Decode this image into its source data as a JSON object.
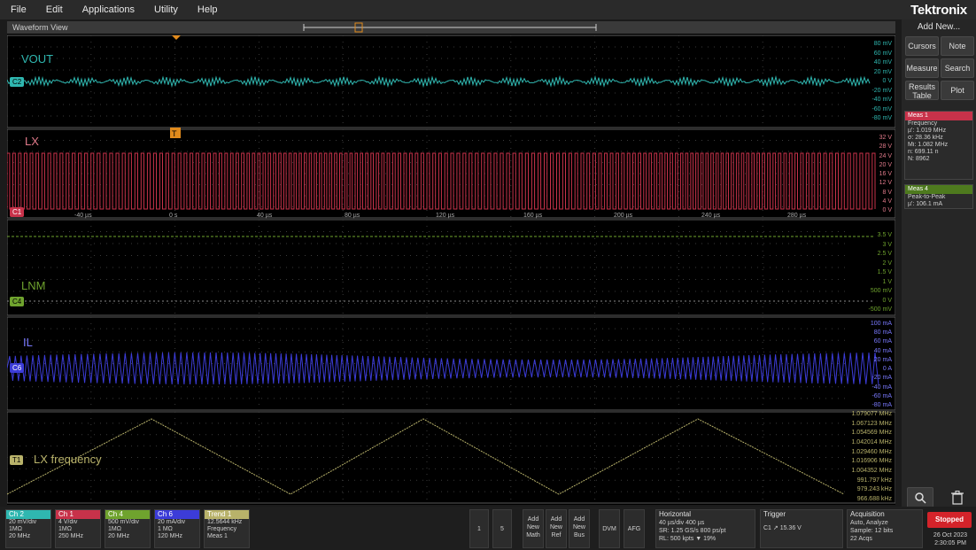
{
  "menu": [
    "File",
    "Edit",
    "Applications",
    "Utility",
    "Help"
  ],
  "brand": "Tektronix",
  "waveform_view_title": "Waveform View",
  "channels": {
    "vout": {
      "label": "VOUT",
      "badge": "C2",
      "color": "#2fb7b0",
      "scale": [
        "80 mV",
        "60 mV",
        "40 mV",
        "20 mV",
        "0 V",
        "-20 mV",
        "-40 mV",
        "-60 mV",
        "-80 mV"
      ]
    },
    "lx": {
      "label": "LX",
      "badge": "C1",
      "color": "#c8324a",
      "scale": [
        "32 V",
        "28 V",
        "24 V",
        "20 V",
        "16 V",
        "12 V",
        "8 V",
        "4 V",
        "0 V"
      ]
    },
    "lnm": {
      "label": "LNM",
      "badge": "C4",
      "color": "#6fa32e",
      "scale": [
        "3.5 V",
        "3 V",
        "2.5 V",
        "2 V",
        "1.5 V",
        "1 V",
        "500 mV",
        "0 V",
        "-500 mV"
      ]
    },
    "il": {
      "label": "IL",
      "badge": "C6",
      "color": "#3c3cd8",
      "scale": [
        "100 mA",
        "80 mA",
        "60 mA",
        "40 mA",
        "20 mA",
        "0 A",
        "-20 mA",
        "-40 mA",
        "-60 mA",
        "-80 mA"
      ]
    },
    "freq": {
      "label": "LX frequency",
      "badge": "T1",
      "color": "#b8b26a",
      "scale": [
        "1.079077 MHz",
        "1.067123 MHz",
        "1.054569 MHz",
        "1.042014 MHz",
        "1.029460 MHz",
        "1.016906 MHz",
        "1.004352 MHz",
        "991.797 kHz",
        "979.243 kHz",
        "966.688 kHz"
      ]
    }
  },
  "time_labels": [
    "-40 µs",
    "0 s",
    "40 µs",
    "80 µs",
    "120 µs",
    "160 µs",
    "200 µs",
    "240 µs",
    "280 µs"
  ],
  "trigger_marker": "T",
  "right_panel": {
    "add_new": "Add New...",
    "buttons": [
      "Cursors",
      "Note",
      "Measure",
      "Search",
      "Results Table",
      "Plot"
    ],
    "meas1": {
      "head": "Meas 1",
      "lines": [
        "Frequency",
        "µ': 1.019 MHz",
        "σ: 28.36 kHz",
        "Mi: 1.082 MHz",
        "n: 699.11 n",
        "N: 8962"
      ]
    },
    "meas4": {
      "head": "Meas 4",
      "lines": [
        "Peak-to-Peak",
        "µ': 106.1 mA"
      ]
    }
  },
  "bottom": {
    "ch_tiles": [
      {
        "name": "Ch 2",
        "color": "#2fb7b0",
        "lines": [
          "20 mV/div",
          "1MΩ",
          "20 MHz"
        ]
      },
      {
        "name": "Ch 1",
        "color": "#c8324a",
        "lines": [
          "4 V/div",
          "1MΩ",
          "250 MHz"
        ]
      },
      {
        "name": "Ch 4",
        "color": "#6fa32e",
        "lines": [
          "500 mV/div",
          "1MΩ",
          "20 MHz"
        ]
      },
      {
        "name": "Ch 6",
        "color": "#3c3cd8",
        "lines": [
          "20 mA/div",
          "1 MΩ",
          "120 MHz"
        ]
      },
      {
        "name": "Trend 1",
        "color": "#b8b26a",
        "lines": [
          "12.5644 kHz",
          "Frequency",
          "Meas 1"
        ]
      }
    ],
    "small_buttons": [
      "1",
      "5",
      "Add New Math",
      "Add New Ref",
      "Add New Bus",
      "DVM",
      "AFG"
    ],
    "horizontal": {
      "head": "Horizontal",
      "lines": [
        "40 µs/div   400 µs",
        "SR: 1.25 GS/s   800 ps/pt",
        "RL: 500 kpts   ▼ 19%"
      ]
    },
    "trigger": {
      "head": "Trigger",
      "lines": [
        "C1 ↗ 15.36 V"
      ]
    },
    "acquisition": {
      "head": "Acquisition",
      "lines": [
        "Auto,   Analyze",
        "Sample: 12 bits",
        "22 Acqs"
      ]
    },
    "status": "Stopped",
    "date": "26 Oct 2023",
    "time": "2:30:05 PM"
  }
}
